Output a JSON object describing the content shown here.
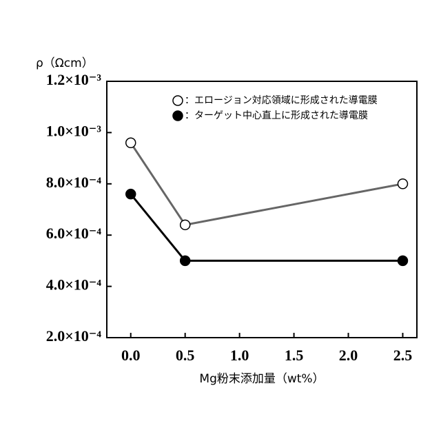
{
  "chart_data": {
    "type": "line",
    "y_label": "ρ（Ωcm）",
    "x_label": "Mg粉末添加量（wt%）",
    "xlim": [
      -0.22,
      2.63
    ],
    "xticks": [
      {
        "value": 0,
        "label": "0.0"
      },
      0.5,
      {
        "value": 1,
        "label": "1.0"
      },
      1.5,
      {
        "value": 2,
        "label": "2.0"
      },
      2.5
    ],
    "ylim": [
      0.0002,
      0.0012
    ],
    "yticks": [
      {
        "value": 0.0002,
        "label": "2.0×10⁻⁴"
      },
      {
        "value": 0.0004,
        "label": "4.0×10⁻⁴"
      },
      {
        "value": 0.0006,
        "label": "6.0×10⁻⁴"
      },
      {
        "value": 0.0008,
        "label": "8.0×10⁻⁴"
      },
      {
        "value": 0.001,
        "label": "1.0×10⁻³"
      },
      {
        "value": 0.0012,
        "label": "1.2×10⁻³"
      }
    ],
    "series": [
      {
        "name": "：エロージョン対応領域に形成された導電膜",
        "color": "#666666",
        "marker": "open",
        "x": [
          0,
          0.5,
          2.5
        ],
        "values": [
          0.00096,
          0.00064,
          0.0008
        ]
      },
      {
        "name": "：ターゲット中心直上に形成された導電膜",
        "color": "#000000",
        "marker": "filled",
        "x": [
          0,
          0.5,
          2.5
        ],
        "values": [
          0.00076,
          0.0005,
          0.0005
        ]
      }
    ],
    "legend": "top-right"
  }
}
